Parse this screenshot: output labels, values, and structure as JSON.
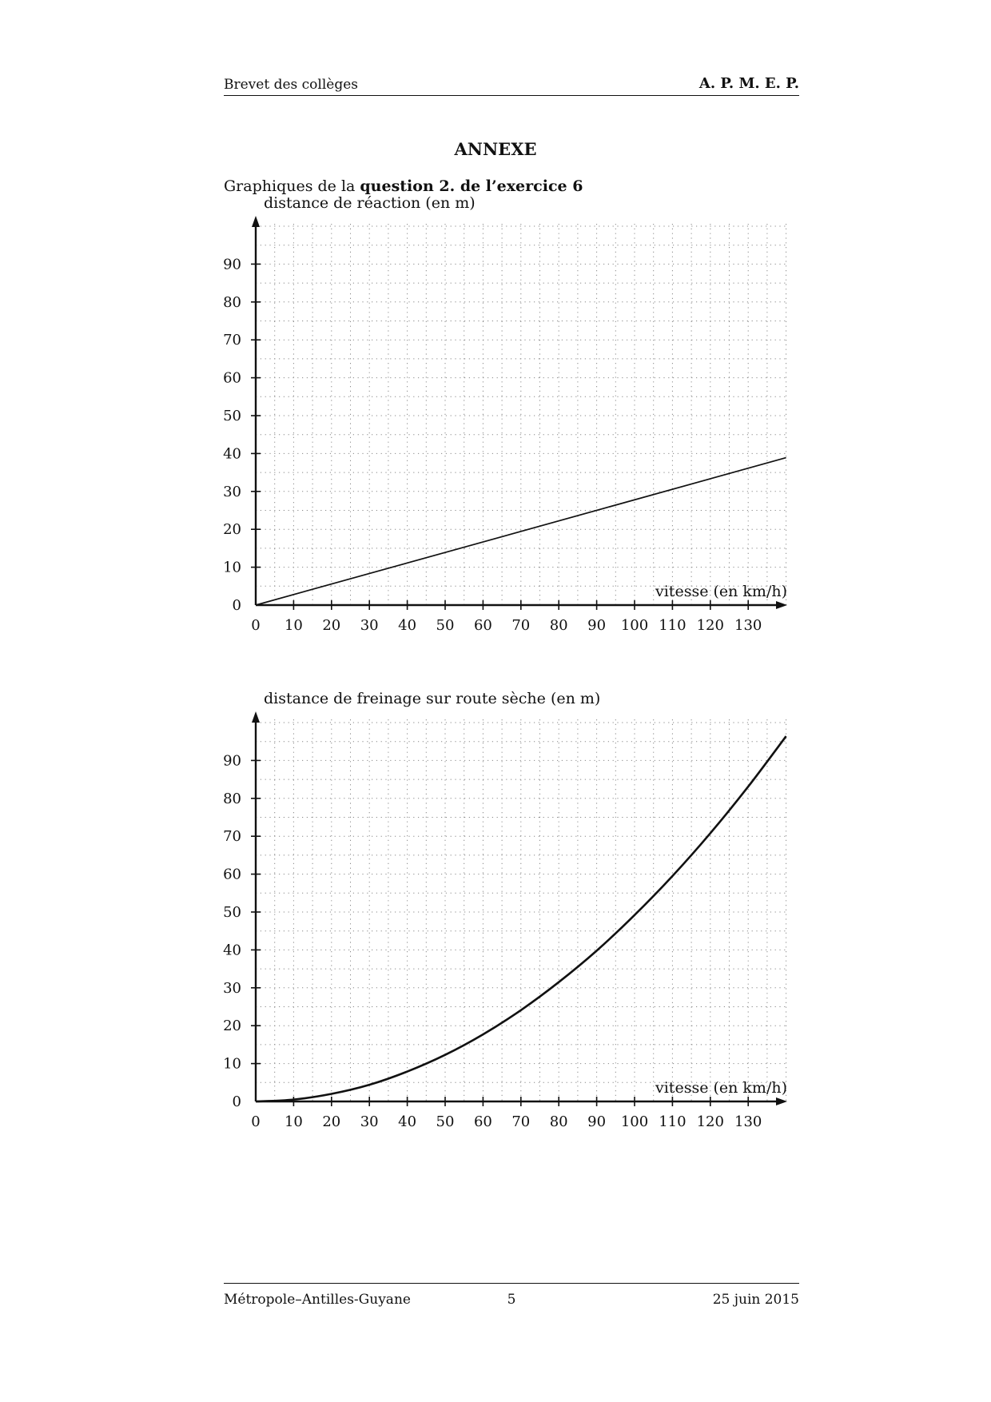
{
  "header": {
    "left": "Brevet des collèges",
    "right": "A. P. M. E. P."
  },
  "title": "ANNEXE",
  "intro": {
    "prefix": "Graphiques de la ",
    "bold": "question 2. de l’exercice 6"
  },
  "footer": {
    "left": "Métropole–Antilles-Guyane",
    "page": "5",
    "right": "25 juin 2015"
  },
  "chart_data": [
    {
      "type": "line",
      "ylabel": "distance de réaction (en m)",
      "xlabel": "vitesse (en km/h)",
      "xlim": [
        0,
        140
      ],
      "ylim": [
        0,
        100
      ],
      "x_ticks": [
        0,
        10,
        20,
        30,
        40,
        50,
        60,
        70,
        80,
        90,
        100,
        110,
        120,
        130
      ],
      "y_ticks": [
        0,
        10,
        20,
        30,
        40,
        50,
        60,
        70,
        80,
        90
      ],
      "grid": true,
      "series": [
        {
          "x": [
            0,
            140
          ],
          "y": [
            0,
            38.9
          ]
        }
      ]
    },
    {
      "type": "line",
      "ylabel": "distance de freinage sur route sèche (en m)",
      "xlabel": "vitesse (en km/h)",
      "xlim": [
        0,
        140
      ],
      "ylim": [
        0,
        100
      ],
      "x_ticks": [
        0,
        10,
        20,
        30,
        40,
        50,
        60,
        70,
        80,
        90,
        100,
        110,
        120,
        130
      ],
      "y_ticks": [
        0,
        10,
        20,
        30,
        40,
        50,
        60,
        70,
        80,
        90
      ],
      "grid": true,
      "series": [
        {
          "x": [
            0,
            10,
            20,
            30,
            40,
            50,
            60,
            70,
            80,
            90,
            100,
            110,
            120,
            130,
            140
          ],
          "y": [
            0,
            0.5,
            2,
            4.4,
            7.9,
            12.3,
            17.7,
            24.1,
            31.5,
            39.8,
            49.2,
            59.5,
            70.8,
            83.1,
            96.4
          ]
        }
      ]
    }
  ]
}
